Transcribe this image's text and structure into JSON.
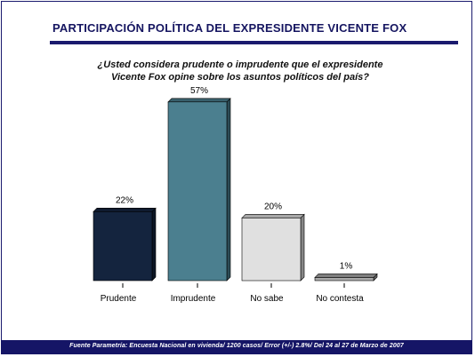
{
  "header": {
    "title": "PARTICIPACIÓN POLÍTICA DEL EXPRESIDENTE VICENTE FOX"
  },
  "question": {
    "line1": "¿Usted considera prudente o imprudente que el expresidente",
    "line2": "Vicente Fox opine sobre los asuntos políticos del país?"
  },
  "footer": {
    "source": "Fuente Parametría: Encuesta Nacional en vivienda/ 1200 casos/ Error (+/-) 2.8%/  Del 24 al 27 de Marzo de 2007"
  },
  "colors": {
    "title": "#151560",
    "rule": "#1a1a6e",
    "footer_bg": "#151566"
  },
  "chart_data": {
    "type": "bar",
    "categories": [
      "Prudente",
      "Imprudente",
      "No sabe",
      "No contesta"
    ],
    "values": [
      22,
      57,
      20,
      1
    ],
    "data_labels": [
      "22%",
      "57%",
      "20%",
      "1%"
    ],
    "bar_colors": [
      "#14243e",
      "#4b7f8f",
      "#e0e0e0",
      "#a9a9a9"
    ],
    "ylim": [
      0,
      60
    ],
    "grid": false,
    "legend": "none"
  }
}
